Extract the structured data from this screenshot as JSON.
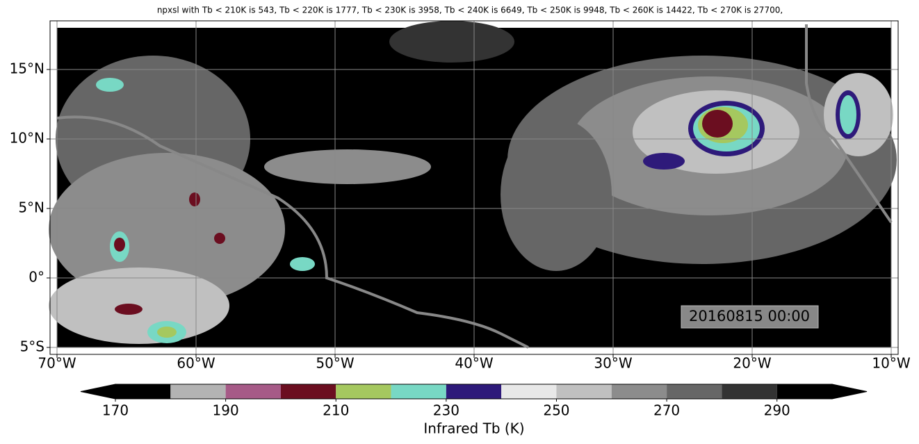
{
  "title": "npxsl with Tb < 210K is 543,  Tb < 220K is 1777,  Tb < 230K is 3958,  Tb < 240K is 6649,  Tb < 250K is 9948,  Tb < 260K is 14422,  Tb < 270K is 27700,",
  "map": {
    "xlim": [
      -70.5,
      -9.5
    ],
    "ylim": [
      -5.5,
      18.5
    ],
    "xticks": [
      {
        "value": -70,
        "label": "70°W"
      },
      {
        "value": -60,
        "label": "60°W"
      },
      {
        "value": -50,
        "label": "50°W"
      },
      {
        "value": -40,
        "label": "40°W"
      },
      {
        "value": -30,
        "label": "30°W"
      },
      {
        "value": -20,
        "label": "20°W"
      },
      {
        "value": -10,
        "label": "10°W"
      }
    ],
    "yticks": [
      {
        "value": 15,
        "label": "15°N"
      },
      {
        "value": 10,
        "label": "10°N"
      },
      {
        "value": 5,
        "label": "5°N"
      },
      {
        "value": 0,
        "label": "0°"
      },
      {
        "value": -5,
        "label": "5°S"
      }
    ],
    "timestamp": "20160815 00:00"
  },
  "colorbar": {
    "label": "Infrared Tb (K)",
    "bounds": [
      170,
      180,
      190,
      200,
      210,
      220,
      230,
      240,
      250,
      260,
      270,
      280,
      290,
      300
    ],
    "colors": [
      "#000000",
      "#b3b3b3",
      "#a65a87",
      "#6b0e20",
      "#a5c85f",
      "#78d8c4",
      "#2e1a7a",
      "#e8e8e8",
      "#c0c0c0",
      "#8c8c8c",
      "#666666",
      "#333333",
      "#000000"
    ],
    "under_color": "#000000",
    "over_color": "#000000",
    "ticks": [
      170,
      190,
      210,
      230,
      250,
      270,
      290
    ]
  }
}
